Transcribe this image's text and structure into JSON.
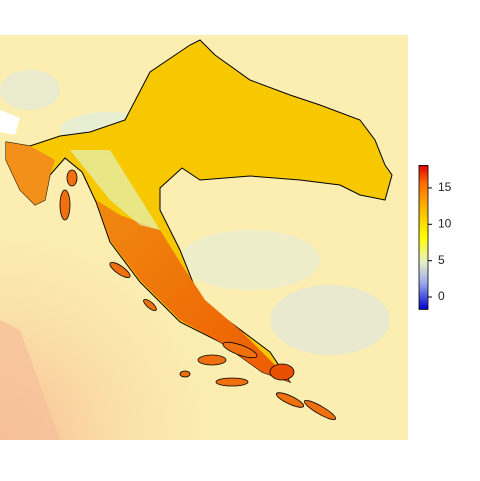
{
  "legend": {
    "lim": [
      -1.7,
      18.1
    ],
    "ticks": [
      0,
      5,
      10,
      15
    ]
  }
}
